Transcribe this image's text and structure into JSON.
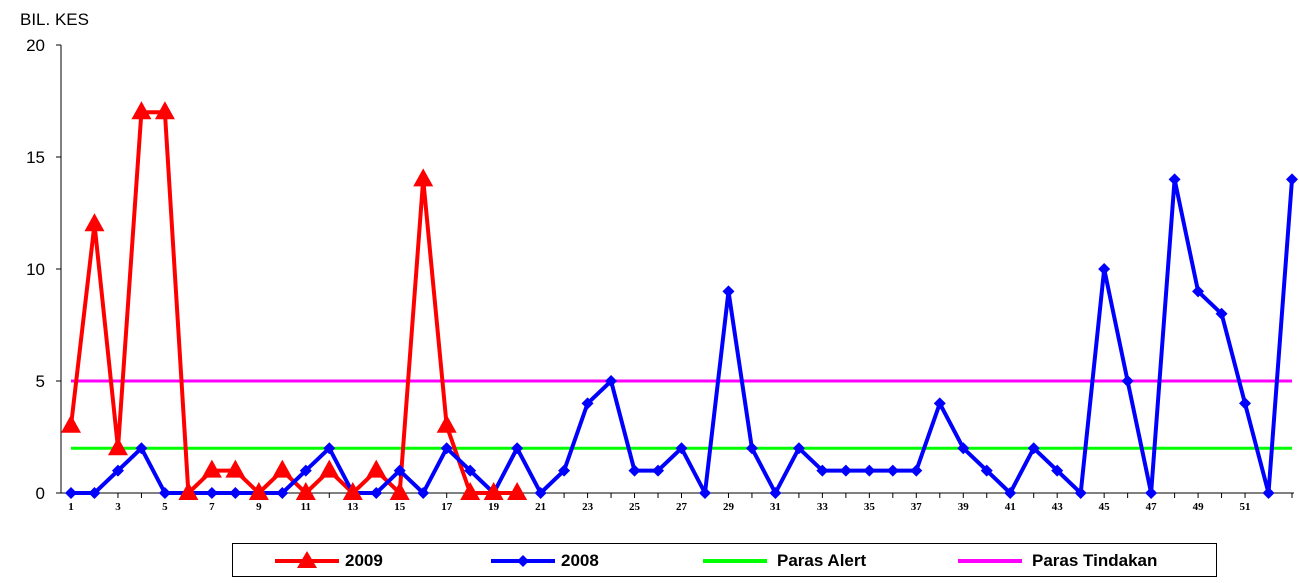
{
  "chart_data": {
    "type": "line",
    "ylabel": "BIL. KES",
    "xlabel": "",
    "ylim": [
      0,
      20
    ],
    "yticks": [
      0,
      5,
      10,
      15,
      20
    ],
    "xlim": [
      1,
      53
    ],
    "xticks": [
      1,
      3,
      5,
      7,
      9,
      11,
      13,
      15,
      17,
      19,
      21,
      23,
      25,
      27,
      29,
      31,
      33,
      35,
      37,
      39,
      41,
      43,
      45,
      47,
      49,
      51
    ],
    "grid": false,
    "legend_position": "bottom",
    "series": [
      {
        "name": "2009",
        "color": "#ff0000",
        "marker": "triangle",
        "x": [
          1,
          2,
          3,
          4,
          5,
          6,
          7,
          8,
          9,
          10,
          11,
          12,
          13,
          14,
          15,
          16,
          17,
          18,
          19,
          20
        ],
        "values": [
          3,
          12,
          2,
          17,
          17,
          0,
          1,
          1,
          0,
          1,
          0,
          1,
          0,
          1,
          0,
          14,
          3,
          0,
          0,
          0
        ]
      },
      {
        "name": "2008",
        "color": "#0000ff",
        "marker": "diamond",
        "x": [
          1,
          2,
          3,
          4,
          5,
          6,
          7,
          8,
          9,
          10,
          11,
          12,
          13,
          14,
          15,
          16,
          17,
          18,
          19,
          20,
          21,
          22,
          23,
          24,
          25,
          26,
          27,
          28,
          29,
          30,
          31,
          32,
          33,
          34,
          35,
          36,
          37,
          38,
          39,
          40,
          41,
          42,
          43,
          44,
          45,
          46,
          47,
          48,
          49,
          50,
          51,
          52,
          53
        ],
        "values": [
          0,
          0,
          1,
          2,
          0,
          0,
          0,
          0,
          0,
          0,
          1,
          2,
          0,
          0,
          1,
          0,
          2,
          1,
          0,
          2,
          0,
          1,
          4,
          5,
          1,
          1,
          2,
          0,
          9,
          2,
          0,
          2,
          1,
          1,
          1,
          1,
          1,
          4,
          2,
          1,
          0,
          2,
          1,
          0,
          10,
          5,
          0,
          14,
          9,
          8,
          4,
          0,
          14
        ]
      },
      {
        "name": "Paras Alert",
        "color": "#00ff00",
        "marker": "none",
        "x": [
          1,
          53
        ],
        "values": [
          2,
          2
        ]
      },
      {
        "name": "Paras Tindakan",
        "color": "#ff00ff",
        "marker": "none",
        "x": [
          1,
          53
        ],
        "values": [
          5,
          5
        ]
      }
    ]
  }
}
